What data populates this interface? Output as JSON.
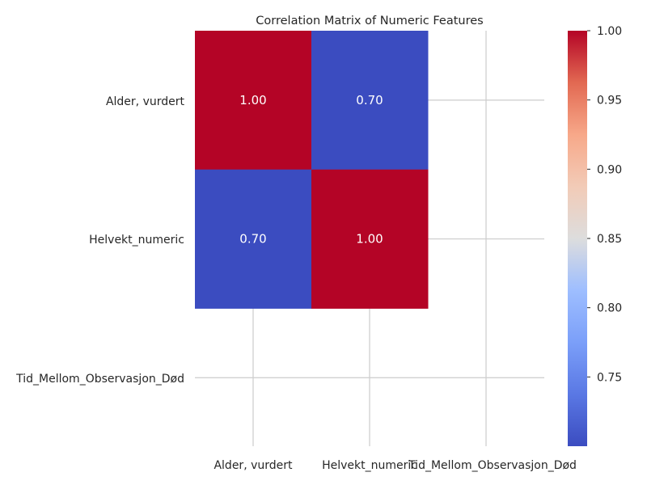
{
  "chart_data": {
    "type": "heatmap",
    "title": "Correlation Matrix of Numeric Features",
    "xlabel": "",
    "ylabel": "",
    "x_categories": [
      "Alder, vurdert",
      "Helvekt_numeric",
      "Tid_Mellom_Observasjon_Død"
    ],
    "y_categories": [
      "Alder, vurdert",
      "Helvekt_numeric",
      "Tid_Mellom_Observasjon_Død"
    ],
    "values": [
      [
        1.0,
        0.7,
        null
      ],
      [
        0.7,
        1.0,
        null
      ],
      [
        null,
        null,
        null
      ]
    ],
    "annotations": [
      [
        "1.00",
        "0.70",
        ""
      ],
      [
        "0.70",
        "1.00",
        ""
      ],
      [
        "",
        "",
        ""
      ]
    ],
    "colormap": "coolwarm",
    "colorbar": {
      "range": [
        0.7,
        1.0
      ],
      "ticks": [
        0.75,
        0.8,
        0.85,
        0.9,
        0.95,
        1.0
      ],
      "tick_labels": [
        "0.75",
        "0.80",
        "0.85",
        "0.90",
        "0.95",
        "1.00"
      ]
    },
    "grid": true,
    "colors": {
      "low": "#3b4cc0",
      "high": "#b40426",
      "grid": "#cccccc",
      "text": "#262626"
    }
  }
}
